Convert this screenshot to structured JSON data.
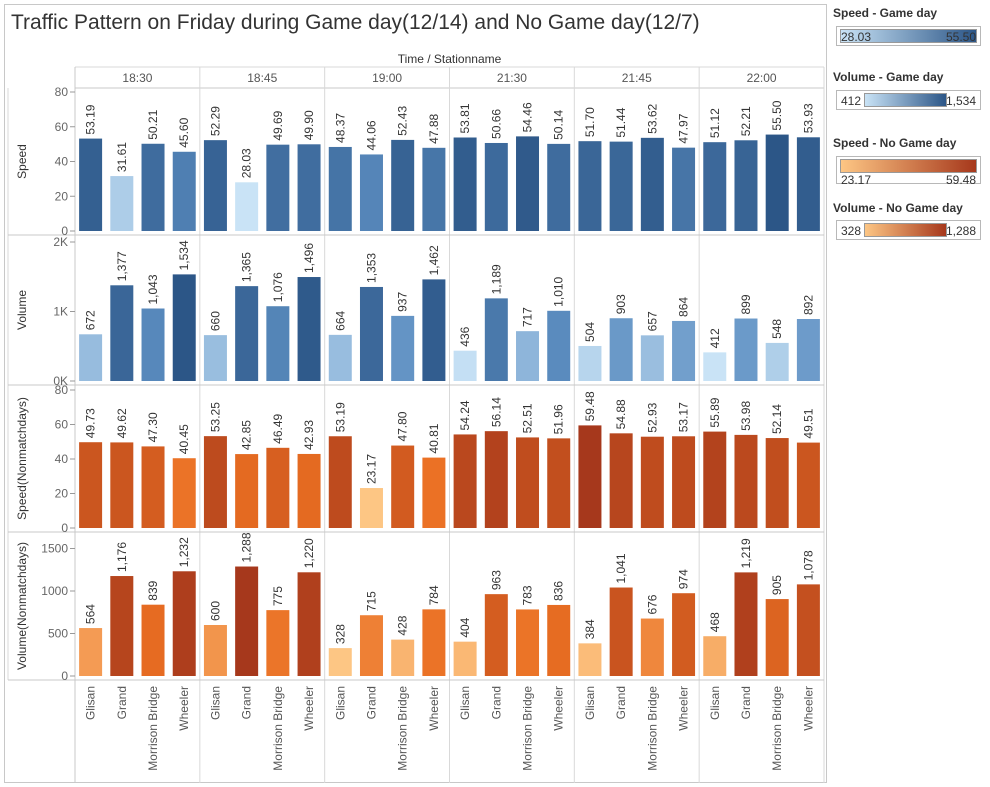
{
  "page": {
    "title": "Traffic Pattern on Friday during Game day(12/14) and No Game day(12/7)"
  },
  "chart_data": {
    "type": "bar",
    "title": "Traffic Pattern on Friday during Game day(12/14) and No Game day(12/7)",
    "column_header": "Time / Stationname",
    "times": [
      "18:30",
      "18:45",
      "19:00",
      "21:30",
      "21:45",
      "22:00"
    ],
    "stations": [
      "Glisan",
      "Grand",
      "Morrison Bridge",
      "Wheeler"
    ],
    "rows": [
      {
        "measure": "Speed",
        "ylabel": "Speed",
        "palette": "blue",
        "ylim": [
          0,
          80
        ],
        "ticks": [
          0,
          20,
          40,
          60,
          80
        ],
        "tick_labels": [
          "0",
          "20",
          "40",
          "60",
          "80"
        ],
        "color_range": [
          28.03,
          55.5
        ],
        "values": [
          [
            53.19,
            31.61,
            50.21,
            45.6
          ],
          [
            52.29,
            28.03,
            49.69,
            49.9
          ],
          [
            48.37,
            44.06,
            52.43,
            47.88
          ],
          [
            53.81,
            50.66,
            54.46,
            50.14
          ],
          [
            51.7,
            51.44,
            53.62,
            47.97
          ],
          [
            51.12,
            52.21,
            55.5,
            53.93
          ]
        ],
        "labels": [
          [
            "53.19",
            "31.61",
            "50.21",
            "45.60"
          ],
          [
            "52.29",
            "28.03",
            "49.69",
            "49.90"
          ],
          [
            "48.37",
            "44.06",
            "52.43",
            "47.88"
          ],
          [
            "53.81",
            "50.66",
            "54.46",
            "50.14"
          ],
          [
            "51.70",
            "51.44",
            "53.62",
            "47.97"
          ],
          [
            "51.12",
            "52.21",
            "55.50",
            "53.93"
          ]
        ]
      },
      {
        "measure": "Volume",
        "ylabel": "Volume",
        "palette": "blue",
        "ylim": [
          0,
          2000
        ],
        "ticks": [
          0,
          1000,
          2000
        ],
        "tick_labels": [
          "0K",
          "1K",
          "2K"
        ],
        "color_range": [
          412,
          1534
        ],
        "values": [
          [
            672,
            1377,
            1043,
            1534
          ],
          [
            660,
            1365,
            1076,
            1496
          ],
          [
            664,
            1353,
            937,
            1462
          ],
          [
            436,
            1189,
            717,
            1010
          ],
          [
            504,
            903,
            657,
            864
          ],
          [
            412,
            899,
            548,
            892
          ]
        ],
        "labels": [
          [
            "672",
            "1,377",
            "1,043",
            "1,534"
          ],
          [
            "660",
            "1,365",
            "1,076",
            "1,496"
          ],
          [
            "664",
            "1,353",
            "937",
            "1,462"
          ],
          [
            "436",
            "1,189",
            "717",
            "1,010"
          ],
          [
            "504",
            "903",
            "657",
            "864"
          ],
          [
            "412",
            "899",
            "548",
            "892"
          ]
        ]
      },
      {
        "measure": "Speed(Nonmatchdays)",
        "ylabel": "Speed(Nonmatchdays)",
        "palette": "orange",
        "ylim": [
          0,
          80
        ],
        "ticks": [
          0,
          20,
          40,
          60,
          80
        ],
        "tick_labels": [
          "0",
          "20",
          "40",
          "60",
          "80"
        ],
        "color_range": [
          23.17,
          59.48
        ],
        "values": [
          [
            49.73,
            49.62,
            47.3,
            40.45
          ],
          [
            53.25,
            42.85,
            46.49,
            42.93
          ],
          [
            53.19,
            23.17,
            47.8,
            40.81
          ],
          [
            54.24,
            56.14,
            52.51,
            51.96
          ],
          [
            59.48,
            54.88,
            52.93,
            53.17
          ],
          [
            55.89,
            53.98,
            52.14,
            49.51
          ]
        ],
        "labels": [
          [
            "49.73",
            "49.62",
            "47.30",
            "40.45"
          ],
          [
            "53.25",
            "42.85",
            "46.49",
            "42.93"
          ],
          [
            "53.19",
            "23.17",
            "47.80",
            "40.81"
          ],
          [
            "54.24",
            "56.14",
            "52.51",
            "51.96"
          ],
          [
            "59.48",
            "54.88",
            "52.93",
            "53.17"
          ],
          [
            "55.89",
            "53.98",
            "52.14",
            "49.51"
          ]
        ]
      },
      {
        "measure": "Volume(Nonmatchdays)",
        "ylabel": "Volume(Nonmatchdays)",
        "palette": "orange",
        "ylim": [
          0,
          1600
        ],
        "ticks": [
          0,
          500,
          1000,
          1500
        ],
        "tick_labels": [
          "0",
          "500",
          "1000",
          "1500"
        ],
        "color_range": [
          328,
          1288
        ],
        "values": [
          [
            564,
            1176,
            839,
            1232
          ],
          [
            600,
            1288,
            775,
            1220
          ],
          [
            328,
            715,
            428,
            784
          ],
          [
            404,
            963,
            783,
            836
          ],
          [
            384,
            1041,
            676,
            974
          ],
          [
            468,
            1219,
            905,
            1078
          ]
        ],
        "labels": [
          [
            "564",
            "1,176",
            "839",
            "1,232"
          ],
          [
            "600",
            "1,288",
            "775",
            "1,220"
          ],
          [
            "328",
            "715",
            "428",
            "784"
          ],
          [
            "404",
            "963",
            "783",
            "836"
          ],
          [
            "384",
            "1,041",
            "676",
            "974"
          ],
          [
            "468",
            "1,219",
            "905",
            "1,078"
          ]
        ]
      }
    ],
    "grid": false,
    "legend_position": "right"
  },
  "legend": [
    {
      "title": "Speed - Game day",
      "min": "28.03",
      "max": "55.50",
      "low_color": "#c9e3f6",
      "high_color": "#2c5687"
    },
    {
      "title": "Volume - Game day",
      "min": "412",
      "max": "1,534",
      "low_color": "#c9e3f6",
      "high_color": "#2c5687"
    },
    {
      "title": "Speed - No Game day",
      "min": "23.17",
      "max": "59.48",
      "low_color": "#fdc684",
      "high_color": "#a6381c"
    },
    {
      "title": "Volume - No Game day",
      "min": "328",
      "max": "1,288",
      "low_color": "#fdc684",
      "high_color": "#a6381c"
    }
  ],
  "colors": {
    "blue_low": "#c9e3f6",
    "blue_mid": "#5d8fc2",
    "blue_high": "#2c5687",
    "orange_low": "#fdc684",
    "orange_mid": "#ea6f22",
    "orange_high": "#a6381c"
  }
}
